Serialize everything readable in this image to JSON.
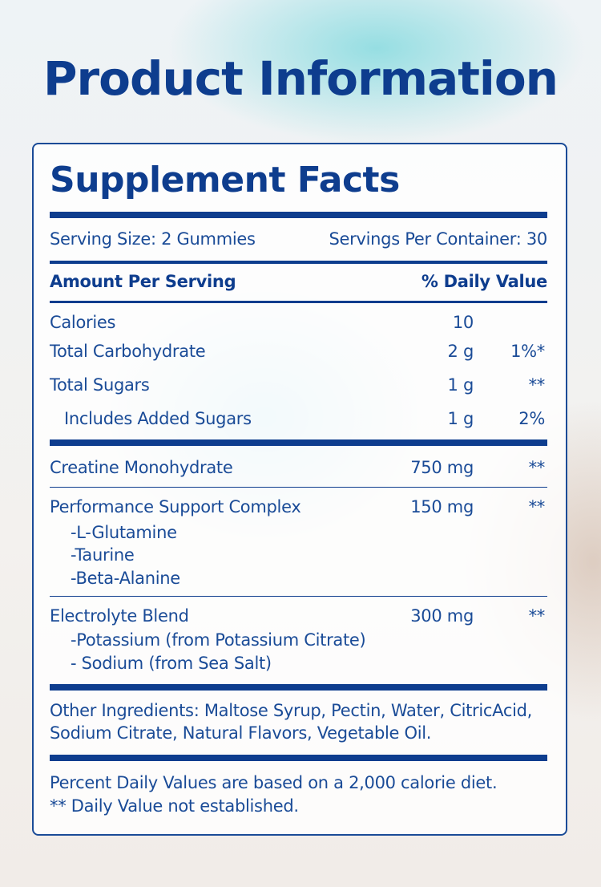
{
  "title": "Product Information",
  "facts": {
    "heading": "Supplement Facts",
    "serving_size": "Serving Size: 2 Gummies",
    "servings_per_container": "Servings Per Container: 30",
    "header": {
      "amount": "Amount Per Serving",
      "daily_value": "% Daily Value"
    },
    "nutrients": [
      {
        "name": "Calories",
        "amount": "10"
      },
      {
        "name": "Total Carbohydrate",
        "amount": "2 g",
        "dv": "1%*"
      },
      {
        "name": "Total Sugars",
        "amount": "1 g",
        "dv": "**"
      },
      {
        "name": "Includes Added Sugars",
        "amount": "1 g",
        "dv": "2%"
      }
    ],
    "ingredients": [
      {
        "name": "Creatine Monohydrate",
        "amount": "750 mg",
        "dv": "**"
      },
      {
        "name": "Performance Support Complex",
        "amount": "150 mg",
        "dv": "**",
        "components": [
          "-L-Glutamine",
          "-Taurine",
          "-Beta-Alanine"
        ]
      },
      {
        "name": "Electrolyte Blend",
        "amount": "300 mg",
        "dv": "**",
        "components": [
          "-Potassium (from Potassium Citrate)",
          "- Sodium (from Sea Salt)"
        ]
      }
    ],
    "other_ingredients": [
      "Other Ingredients: Maltose Syrup, Pectin, Water, CitricAcid,",
      "Sodium Citrate, Natural Flavors, Vegetable Oil."
    ],
    "footnotes": [
      "Percent Daily Values are based on a 2,000 calorie diet.",
      "** Daily Value not established."
    ]
  }
}
